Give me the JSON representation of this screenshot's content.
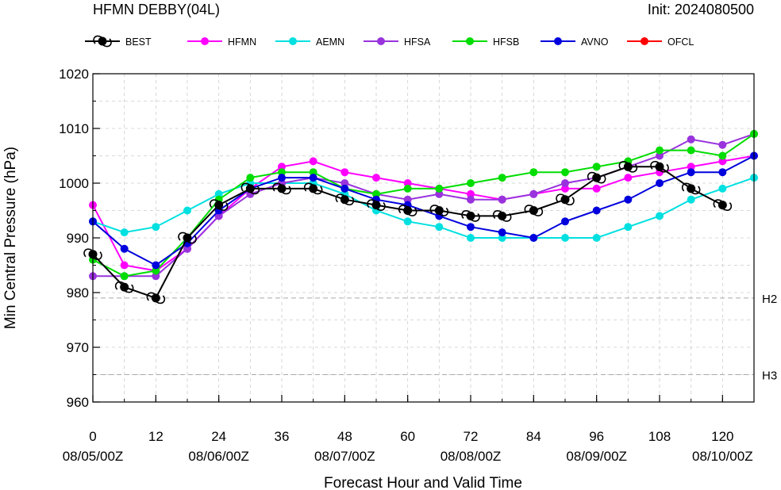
{
  "header": {
    "title": "HFMN DEBBY(04L)",
    "init_label": "Init: 2024080500"
  },
  "chart_data": {
    "type": "line",
    "xlabel": "Forecast Hour and Valid Time",
    "ylabel": "Min Central Pressure (hPa)",
    "xlim": [
      0,
      126
    ],
    "ylim": [
      960,
      1020
    ],
    "x_ticks": [
      0,
      12,
      24,
      36,
      48,
      60,
      72,
      84,
      96,
      108,
      120
    ],
    "y_ticks": [
      960,
      970,
      980,
      990,
      1000,
      1010,
      1020
    ],
    "valid_time_labels": [
      {
        "x": 0,
        "label": "08/05/00Z"
      },
      {
        "x": 24,
        "label": "08/06/00Z"
      },
      {
        "x": 48,
        "label": "08/07/00Z"
      },
      {
        "x": 72,
        "label": "08/08/00Z"
      },
      {
        "x": 96,
        "label": "08/09/00Z"
      },
      {
        "x": 120,
        "label": "08/10/00Z"
      }
    ],
    "grid": true,
    "legend_position": "top",
    "reference_lines": [
      {
        "y": 979,
        "label": "H2"
      },
      {
        "y": 965,
        "label": "H3"
      }
    ],
    "series": [
      {
        "name": "BEST",
        "color": "#000000",
        "marker": "hurricane-symbol",
        "x": [
          0,
          6,
          12,
          18,
          24,
          30,
          36,
          42,
          48,
          54,
          60,
          66,
          72,
          78,
          84,
          90,
          96,
          102,
          108,
          114,
          120
        ],
        "values": [
          987,
          981,
          979,
          990,
          996,
          999,
          999,
          999,
          997,
          996,
          995,
          995,
          994,
          994,
          995,
          997,
          1001,
          1003,
          1003,
          999,
          996
        ]
      },
      {
        "name": "HFMN",
        "color": "#ff00ff",
        "marker": "circle",
        "x": [
          0,
          6,
          12,
          18,
          24,
          30,
          36,
          42,
          48,
          54,
          60,
          66,
          72,
          78,
          84,
          90,
          96,
          102,
          108,
          114,
          120,
          126
        ],
        "values": [
          996,
          985,
          984,
          988,
          994,
          999,
          1003,
          1004,
          1002,
          1001,
          1000,
          999,
          998,
          997,
          998,
          999,
          999,
          1001,
          1002,
          1003,
          1004,
          1005
        ]
      },
      {
        "name": "AEMN",
        "color": "#00e0e0",
        "marker": "circle",
        "x": [
          0,
          6,
          12,
          18,
          24,
          30,
          36,
          42,
          48,
          54,
          60,
          66,
          72,
          78,
          84,
          90,
          96,
          102,
          108,
          114,
          120,
          126
        ],
        "values": [
          993,
          991,
          992,
          995,
          998,
          1000,
          1000,
          1000,
          998,
          995,
          993,
          992,
          990,
          990,
          990,
          990,
          990,
          992,
          994,
          997,
          999,
          1001
        ]
      },
      {
        "name": "HFSA",
        "color": "#9933dd",
        "marker": "circle",
        "x": [
          0,
          6,
          12,
          18,
          24,
          30,
          36,
          42,
          48,
          54,
          60,
          66,
          72,
          78,
          84,
          90,
          96,
          102,
          108,
          114,
          120,
          126
        ],
        "values": [
          983,
          983,
          983,
          988,
          994,
          998,
          1000,
          1001,
          1000,
          998,
          997,
          998,
          997,
          997,
          998,
          1000,
          1001,
          1003,
          1005,
          1008,
          1007,
          1009
        ]
      },
      {
        "name": "HFSB",
        "color": "#00dd00",
        "marker": "circle",
        "x": [
          0,
          6,
          12,
          18,
          24,
          30,
          36,
          42,
          48,
          54,
          60,
          66,
          72,
          78,
          84,
          90,
          96,
          102,
          108,
          114,
          120,
          126
        ],
        "values": [
          986,
          983,
          984,
          990,
          997,
          1001,
          1002,
          1002,
          999,
          998,
          999,
          999,
          1000,
          1001,
          1002,
          1002,
          1003,
          1004,
          1006,
          1006,
          1005,
          1009
        ]
      },
      {
        "name": "AVNO",
        "color": "#0000dd",
        "marker": "circle",
        "x": [
          0,
          6,
          12,
          18,
          24,
          30,
          36,
          42,
          48,
          54,
          60,
          66,
          72,
          78,
          84,
          90,
          96,
          102,
          108,
          114,
          120,
          126
        ],
        "values": [
          993,
          988,
          985,
          989,
          995,
          999,
          1001,
          1001,
          999,
          997,
          996,
          994,
          992,
          991,
          990,
          993,
          995,
          997,
          1000,
          1002,
          1002,
          1005
        ]
      },
      {
        "name": "OFCL",
        "color": "#ff0000",
        "marker": "circle",
        "x": [],
        "values": []
      }
    ]
  }
}
